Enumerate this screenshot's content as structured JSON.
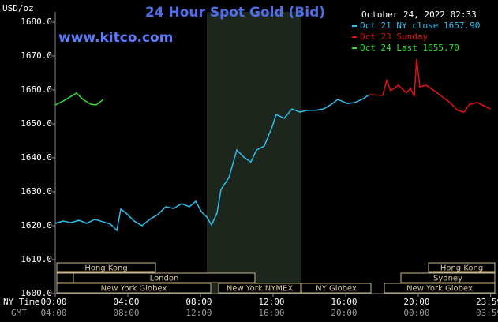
{
  "chart_data": {
    "type": "line",
    "title": "24 Hour Spot Gold (Bid)",
    "watermark": "www.kitco.com",
    "date": "October 24, 2022 02:33",
    "y_label": "USD/oz",
    "x_label": "NY Time",
    "x2_label": "GMT",
    "xlim": [
      0,
      24.35
    ],
    "ylim": [
      1600,
      1680
    ],
    "yticks": [
      {
        "value": 1600,
        "label": "1600.0"
      },
      {
        "value": 1610,
        "label": "1610.0"
      },
      {
        "value": 1620,
        "label": "1620.0"
      },
      {
        "value": 1630,
        "label": "1630.0"
      },
      {
        "value": 1640,
        "label": "1640.0"
      },
      {
        "value": 1650,
        "label": "1650.0"
      },
      {
        "value": 1660,
        "label": "1660.0"
      },
      {
        "value": 1670,
        "label": "1670.0"
      },
      {
        "value": 1680,
        "label": "1680.0"
      }
    ],
    "xticks": [
      {
        "value": 0,
        "label": "00:00"
      },
      {
        "value": 4,
        "label": "04:00"
      },
      {
        "value": 8,
        "label": "08:00"
      },
      {
        "value": 12,
        "label": "12:00"
      },
      {
        "value": 16,
        "label": "16:00"
      },
      {
        "value": 20,
        "label": "20:00"
      },
      {
        "value": 23.983,
        "label": "23:59"
      }
    ],
    "x2ticks": [
      "04:00",
      "08:00",
      "12:00",
      "16:00",
      "20:00",
      "00:00",
      "03:59"
    ],
    "sessions": [
      "Hong Kong",
      "London",
      "New York Globex",
      "New York NYMEX",
      "NY Globex",
      "Hong Kong",
      "Sydney",
      "New York Globex"
    ],
    "series": [
      {
        "name": "Oct 21 NY close 1657.90",
        "color": "#2cc0f0",
        "x": [
          0,
          0.43,
          0.87,
          1.3,
          1.74,
          2.17,
          2.61,
          3.04,
          3.39,
          3.61,
          3.91,
          4.35,
          4.78,
          5.22,
          5.65,
          6.09,
          6.52,
          6.96,
          7.39,
          7.74,
          8.04,
          8.35,
          8.61,
          8.91,
          9.13,
          9.57,
          10,
          10.43,
          10.78,
          11.09,
          11.52,
          11.96,
          12.17,
          12.61,
          13.04,
          13.48,
          13.91,
          14.35,
          14.78,
          15.22,
          15.57,
          16.09,
          16.52,
          16.96,
          17.3
        ],
        "values": [
          1620.7,
          1621.4,
          1620.9,
          1621.6,
          1620.7,
          1621.9,
          1621.2,
          1620.5,
          1618.6,
          1624.9,
          1623.7,
          1621.4,
          1620.0,
          1621.9,
          1623.3,
          1625.6,
          1625.1,
          1626.5,
          1625.6,
          1627.2,
          1624.2,
          1622.6,
          1620.2,
          1623.7,
          1630.7,
          1634.2,
          1642.3,
          1640.0,
          1638.8,
          1642.3,
          1643.5,
          1649.3,
          1652.8,
          1651.6,
          1654.4,
          1653.5,
          1654.0,
          1654.0,
          1654.4,
          1655.8,
          1657.2,
          1656.0,
          1656.3,
          1657.4,
          1658.6
        ]
      },
      {
        "name": "Oct 23 Sunday",
        "color": "#e81010",
        "x": [
          17.3,
          18.04,
          18.26,
          18.48,
          18.91,
          19.35,
          19.57,
          19.78,
          19.91,
          20.09,
          20.43,
          20.87,
          21.3,
          21.74,
          22.17,
          22.52,
          22.83,
          23.26,
          23.7,
          23.98
        ],
        "values": [
          1658.6,
          1658.4,
          1662.8,
          1659.8,
          1661.4,
          1659.1,
          1660.5,
          1658.1,
          1669.1,
          1660.9,
          1661.4,
          1659.8,
          1658.1,
          1656.3,
          1654.0,
          1653.5,
          1655.8,
          1656.3,
          1655.1,
          1654.4
        ]
      },
      {
        "name": "Oct 24 Last 1655.70",
        "color": "#30e030",
        "x": [
          0,
          0.43,
          0.87,
          1.17,
          1.52,
          1.96,
          2.26,
          2.65
        ],
        "values": [
          1655.6,
          1656.7,
          1658.1,
          1659.1,
          1657.2,
          1655.8,
          1655.6,
          1657.2
        ]
      }
    ]
  }
}
